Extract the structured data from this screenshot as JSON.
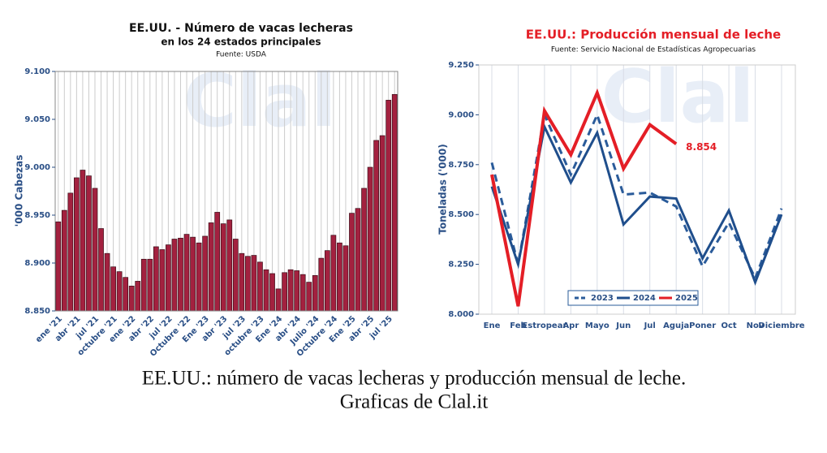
{
  "chart_data": [
    {
      "type": "bar",
      "title": "EE.UU. - Número de vacas lecheras",
      "subtitle": "en los 24 estados principales",
      "source": "Fuente: USDA",
      "watermark": "Clal",
      "ylabel": "'000 Cabezas",
      "color": "#a3213f",
      "categories": [
        "ene '21",
        null,
        null,
        "abr '21",
        null,
        null,
        "jul '21",
        null,
        null,
        "octubre '21",
        null,
        null,
        "ene '22",
        null,
        null,
        "abr '22",
        null,
        null,
        "jul '22",
        null,
        null,
        "Octubre '22",
        null,
        null,
        "Ene '23",
        null,
        null,
        "abr '23",
        null,
        null,
        "jul '23",
        null,
        null,
        "octubre '23",
        null,
        null,
        "Ene '24",
        null,
        null,
        "abr '24",
        null,
        null,
        "Julio '24",
        null,
        null,
        "Octubre '24",
        null,
        null,
        "Ene '25",
        null,
        null,
        "abr '25",
        null,
        null,
        "jul '25",
        null
      ],
      "values": [
        8943,
        8955,
        8973,
        8989,
        8997,
        8991,
        8978,
        8936,
        8910,
        8896,
        8891,
        8885,
        8876,
        8881,
        8904,
        8904,
        8917,
        8914,
        8919,
        8925,
        8926,
        8930,
        8927,
        8921,
        8928,
        8942,
        8953,
        8941,
        8945,
        8925,
        8910,
        8907,
        8908,
        8901,
        8893,
        8889,
        8873,
        8890,
        8893,
        8892,
        8888,
        8880,
        8887,
        8905,
        8913,
        8929,
        8921,
        8918,
        8952,
        8957,
        8978,
        9000,
        9028,
        9033,
        9070,
        9076
      ],
      "ylim": [
        8850,
        9100
      ],
      "yticks": [
        {
          "value": 8850,
          "label": "8.850"
        },
        {
          "value": 8900,
          "label": "8.900"
        },
        {
          "value": 8950,
          "label": "8.950"
        },
        {
          "value": 9000,
          "label": "9.000"
        },
        {
          "value": 9050,
          "label": "9.050"
        },
        {
          "value": 9100,
          "label": "9.100"
        }
      ],
      "grid": "x"
    },
    {
      "type": "line",
      "title": "EE.UU.: Producción mensual de leche",
      "source": "Fuente: Servicio Nacional de Estadísticas Agropecuarias",
      "watermark": "Clal",
      "ylabel": "Toneladas ('000)",
      "categories": [
        "Ene",
        "Feb",
        "Estropear",
        "Apr",
        "Mayo",
        "Jun",
        "Jul",
        "Aguja",
        "Poner",
        "Oct",
        "Nov",
        "Diciembre"
      ],
      "series": [
        {
          "name": "2023",
          "color": "#2a5b9a",
          "dashed": true,
          "values": [
            8760,
            8250,
            9000,
            8700,
            9000,
            8600,
            8610,
            8540,
            8240,
            8460,
            8180,
            8530
          ]
        },
        {
          "name": "2024",
          "color": "#1f4e8c",
          "dashed": false,
          "values": [
            8640,
            8250,
            8940,
            8660,
            8910,
            8450,
            8590,
            8580,
            8280,
            8520,
            8160,
            8500
          ]
        },
        {
          "name": "2025",
          "color": "#e41e26",
          "dashed": false,
          "values": [
            8700,
            8040,
            9020,
            8800,
            9110,
            8730,
            8950,
            8854,
            null,
            null,
            null,
            null
          ],
          "value_labels": [
            null,
            null,
            null,
            null,
            null,
            null,
            null,
            "8.854",
            null,
            null,
            null,
            null
          ]
        }
      ],
      "ylim": [
        8000,
        9250
      ],
      "yticks": [
        {
          "value": 8000,
          "label": "8.000"
        },
        {
          "value": 8250,
          "label": "8.250"
        },
        {
          "value": 8500,
          "label": "8.500"
        },
        {
          "value": 8750,
          "label": "8.750"
        },
        {
          "value": 9000,
          "label": "9.000"
        },
        {
          "value": 9250,
          "label": "9.250"
        }
      ],
      "grid": "x",
      "legend": "bottom"
    }
  ],
  "caption": [
    "EE.UU.: número de vacas lecheras y producción mensual de leche.",
    "Graficas de Clal.it"
  ]
}
